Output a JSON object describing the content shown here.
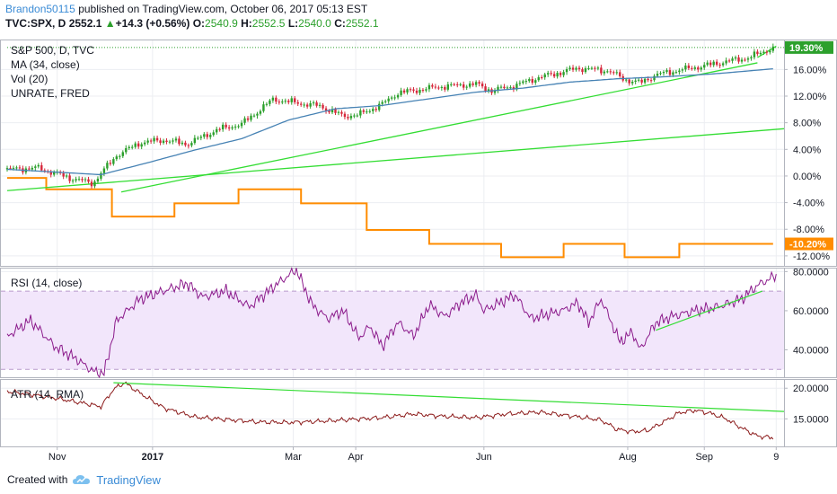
{
  "header": {
    "author": "Brandon50115",
    "published_text": "published on TradingView.com, October 06, 2017 05:13 EST",
    "symbol": "TVC:SPX, D",
    "price": "2552.1",
    "change": "+14.3 (+0.56%)",
    "open_label": "O:",
    "open": "2540.9",
    "high_label": "H:",
    "high": "2552.5",
    "low_label": "L:",
    "low": "2540.0",
    "close_label": "C:",
    "close": "2552.1"
  },
  "footer": {
    "created_with": "Created with",
    "brand": "TradingView"
  },
  "colors": {
    "candle_up": "#2ca02c",
    "candle_down": "#d6273b",
    "ma": "#4682b4",
    "unrate": "#ff8c00",
    "trend": "#33dd33",
    "rsi": "#8b1a8b",
    "rsi_band": "#f2e6fb",
    "atr": "#8b1a1a",
    "current_badge": "#2ca02c"
  },
  "chart_data": [
    {
      "type": "candlestick",
      "legend": [
        "S&P 500, D, TVC",
        "MA (34, close)",
        "Vol (20)",
        "UNRATE, FRED"
      ],
      "ylabel_unit": "%",
      "y_ticks": [
        "16.00%",
        "12.00%",
        "8.00%",
        "4.00%",
        "0.00%",
        "-4.00%",
        "-8.00%",
        "-12.00%"
      ],
      "y_tick_values": [
        16,
        12,
        8,
        4,
        0,
        -4,
        -8,
        -12
      ],
      "ylim": [
        -13.5,
        20.5
      ],
      "current_label": "19.30%",
      "current_value": 19.3,
      "unrate_label": "-10.20%",
      "unrate_value": -10.2,
      "x_ticks": [
        "Nov",
        "2017",
        "Mar",
        "Apr",
        "Jun",
        "Aug",
        "Sep",
        "9"
      ],
      "x_tick_days": [
        32,
        93,
        183,
        223,
        305,
        397,
        446,
        492
      ],
      "x_range_days": [
        0,
        497
      ],
      "spx_anchor_days": [
        0,
        20,
        40,
        55,
        60,
        70,
        85,
        100,
        115,
        135,
        150,
        170,
        185,
        200,
        215,
        225,
        240,
        250,
        265,
        280,
        300,
        310,
        325,
        340,
        355,
        365,
        385,
        395,
        405,
        415,
        430,
        445,
        460,
        475,
        490
      ],
      "spx_anchor_values": [
        1.0,
        1.2,
        -0.3,
        -1.1,
        0.4,
        3.1,
        5.0,
        5.4,
        4.8,
        7.0,
        7.8,
        11.5,
        11.0,
        10.5,
        9.0,
        9.2,
        10.8,
        12.5,
        13.0,
        13.5,
        13.8,
        12.8,
        13.6,
        14.8,
        15.6,
        16.2,
        15.8,
        14.5,
        14.0,
        15.2,
        15.9,
        16.5,
        17.2,
        17.8,
        19.3
      ],
      "ma_anchor_days": [
        0,
        30,
        60,
        90,
        120,
        150,
        180,
        210,
        240,
        270,
        300,
        330,
        360,
        390,
        420,
        450,
        490
      ],
      "ma_anchor_values": [
        1.0,
        0.6,
        0.2,
        2.0,
        3.9,
        5.6,
        8.4,
        10.1,
        10.6,
        11.6,
        12.6,
        13.2,
        14.1,
        14.6,
        14.9,
        15.3,
        16.1
      ],
      "unrate_steps": [
        [
          0,
          -0.3
        ],
        [
          25,
          -2.0
        ],
        [
          67,
          -6.1
        ],
        [
          107,
          -4.1
        ],
        [
          148,
          -2.0
        ],
        [
          188,
          -4.1
        ],
        [
          230,
          -8.1
        ],
        [
          270,
          -10.2
        ],
        [
          316,
          -12.2
        ],
        [
          356,
          -10.2
        ],
        [
          395,
          -12.2
        ],
        [
          430,
          -10.2
        ],
        [
          490,
          -10.2
        ]
      ],
      "trendlines": [
        {
          "x1": 0,
          "y1": -2.2,
          "x2": 497,
          "y2": 7.1
        },
        {
          "x1": 73,
          "y1": -2.4,
          "x2": 480,
          "y2": 17.0
        },
        {
          "x1": 480,
          "y1": 17.8,
          "x2": 492,
          "y2": 19.5
        }
      ],
      "reference_line": 19.3
    },
    {
      "type": "line",
      "title": "RSI (14, close)",
      "y_ticks": [
        "80.0000",
        "60.0000",
        "40.0000"
      ],
      "y_tick_values": [
        80,
        60,
        40
      ],
      "ylim": [
        26,
        82
      ],
      "band": [
        30,
        70
      ],
      "anchor_days": [
        0,
        15,
        30,
        45,
        55,
        62,
        70,
        85,
        100,
        115,
        125,
        140,
        155,
        170,
        185,
        195,
        205,
        215,
        225,
        232,
        240,
        250,
        260,
        270,
        280,
        290,
        300,
        305,
        315,
        325,
        335,
        345,
        355,
        365,
        372,
        380,
        392,
        400,
        405,
        415,
        425,
        440,
        455,
        470,
        480,
        492
      ],
      "values": [
        47,
        55,
        42,
        35,
        29,
        28,
        55,
        66,
        70,
        74,
        67,
        70,
        62,
        72,
        81,
        63,
        56,
        60,
        46,
        52,
        42,
        54,
        47,
        63,
        57,
        64,
        68,
        60,
        64,
        68,
        56,
        58,
        60,
        64,
        54,
        66,
        44,
        49,
        40,
        54,
        57,
        60,
        62,
        66,
        73,
        78
      ],
      "trendline": {
        "x1": 415,
        "y1": 50,
        "x2": 483,
        "y2": 70
      }
    },
    {
      "type": "line",
      "title": "ATR (14, RMA)",
      "y_ticks": [
        "20.0000",
        "15.0000"
      ],
      "y_tick_values": [
        20,
        15
      ],
      "ylim": [
        10.5,
        21.5
      ],
      "anchor_days": [
        0,
        20,
        35,
        50,
        60,
        68,
        75,
        85,
        100,
        120,
        140,
        160,
        180,
        200,
        220,
        240,
        260,
        280,
        300,
        320,
        340,
        360,
        380,
        390,
        400,
        410,
        420,
        430,
        440,
        450,
        460,
        470,
        480,
        490
      ],
      "values": [
        19.5,
        18.8,
        18.2,
        17.5,
        17.0,
        19.8,
        20.9,
        19.2,
        16.8,
        15.3,
        14.9,
        14.5,
        14.4,
        14.6,
        14.9,
        15.2,
        15.8,
        15.4,
        15.2,
        15.8,
        16.1,
        15.5,
        14.8,
        13.3,
        12.9,
        13.1,
        14.5,
        16.0,
        16.4,
        15.9,
        15.0,
        13.5,
        12.2,
        11.9
      ],
      "trendline": {
        "x1": 68,
        "y1": 20.9,
        "x2": 497,
        "y2": 16.2
      }
    }
  ]
}
